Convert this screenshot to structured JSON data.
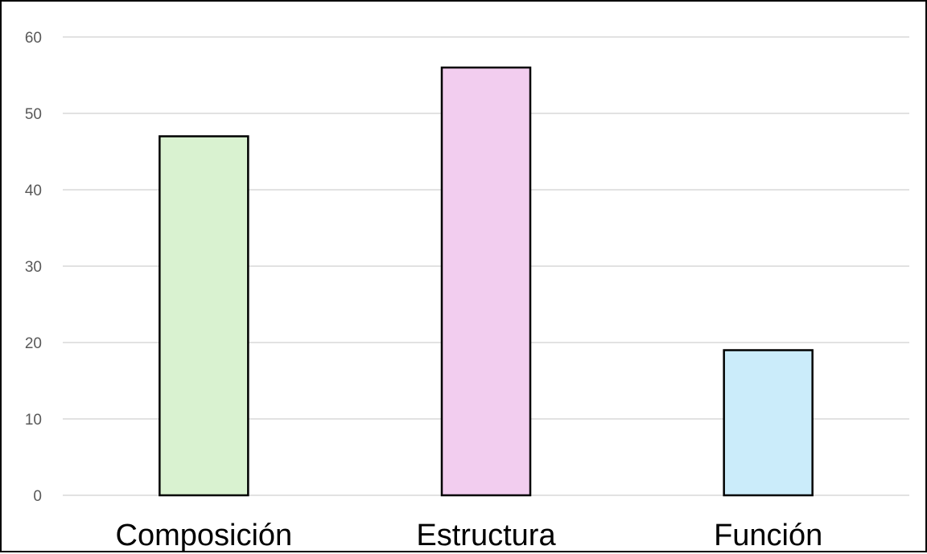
{
  "chart_data": {
    "type": "bar",
    "categories": [
      "Composición",
      "Estructura",
      "Función"
    ],
    "values": [
      47,
      56,
      19
    ],
    "colors": [
      "#d9f2d0",
      "#f2cdef",
      "#cbecfa"
    ],
    "bar_border_color": "#000000",
    "gridline_color": "#d9d9d9",
    "yticks": [
      0,
      10,
      20,
      30,
      40,
      50,
      60
    ],
    "ylim": [
      0,
      60
    ],
    "grid": true,
    "legend": "none",
    "title": "",
    "xlabel": "",
    "ylabel": ""
  }
}
